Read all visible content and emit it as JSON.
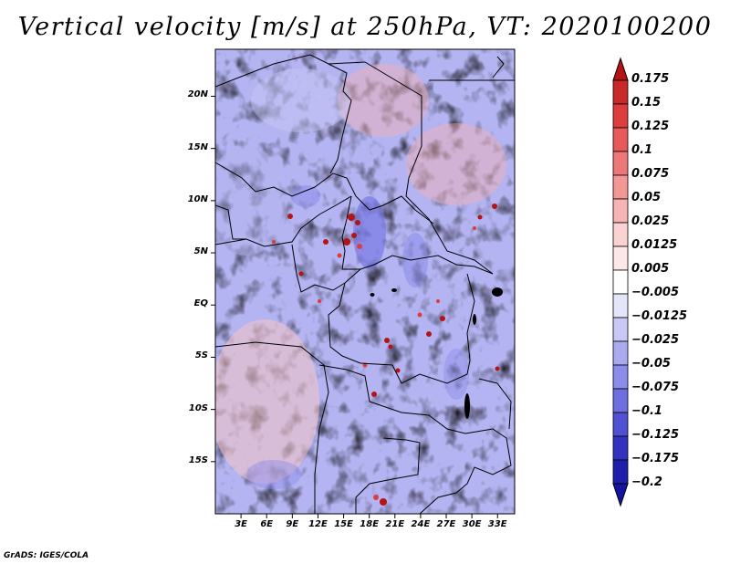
{
  "title": "Vertical velocity [m/s] at 250hPa, VT: 2020100200",
  "credit": "GrADS: IGES/COLA",
  "map": {
    "variable": "Vertical velocity",
    "units": "m/s",
    "level": "250hPa",
    "valid_time": "2020100200",
    "lon_range": [
      0,
      35
    ],
    "lat_range": [
      -20,
      24.5
    ],
    "x_ticks": [
      {
        "lon": 3,
        "label": "3E"
      },
      {
        "lon": 6,
        "label": "6E"
      },
      {
        "lon": 9,
        "label": "9E"
      },
      {
        "lon": 12,
        "label": "12E"
      },
      {
        "lon": 15,
        "label": "15E"
      },
      {
        "lon": 18,
        "label": "18E"
      },
      {
        "lon": 21,
        "label": "21E"
      },
      {
        "lon": 24,
        "label": "24E"
      },
      {
        "lon": 27,
        "label": "27E"
      },
      {
        "lon": 30,
        "label": "30E"
      },
      {
        "lon": 33,
        "label": "33E"
      }
    ],
    "y_ticks": [
      {
        "lat": 20,
        "label": "20N"
      },
      {
        "lat": 15,
        "label": "15N"
      },
      {
        "lat": 10,
        "label": "10N"
      },
      {
        "lat": 5,
        "label": "5N"
      },
      {
        "lat": 0,
        "label": "EQ"
      },
      {
        "lat": -5,
        "label": "5S"
      },
      {
        "lat": -10,
        "label": "10S"
      },
      {
        "lat": -15,
        "label": "15S"
      }
    ]
  },
  "colorbar": {
    "levels": [
      {
        "label": "0.175",
        "color": "#b41414"
      },
      {
        "label": "0.15",
        "color": "#c82828"
      },
      {
        "label": "0.125",
        "color": "#dc3c3c"
      },
      {
        "label": "0.1",
        "color": "#e65a5a"
      },
      {
        "label": "0.075",
        "color": "#ee7878"
      },
      {
        "label": "0.05",
        "color": "#f29696"
      },
      {
        "label": "0.025",
        "color": "#f6b4b4"
      },
      {
        "label": "0.0125",
        "color": "#fad2d2"
      },
      {
        "label": "0.005",
        "color": "#fde8e8"
      },
      {
        "label": "-0.005",
        "color": "#ffffff"
      },
      {
        "label": "-0.0125",
        "color": "#e6e6fa"
      },
      {
        "label": "-0.025",
        "color": "#c8c8f5"
      },
      {
        "label": "-0.05",
        "color": "#aaaaf0"
      },
      {
        "label": "-0.075",
        "color": "#8c8ceb"
      },
      {
        "label": "-0.1",
        "color": "#6e6ee1"
      },
      {
        "label": "-0.125",
        "color": "#5050d2"
      },
      {
        "label": "-0.175",
        "color": "#3232be"
      },
      {
        "label": "-0.2",
        "color": "#1e1eaa"
      }
    ],
    "bottom_color": "#1414a0"
  }
}
